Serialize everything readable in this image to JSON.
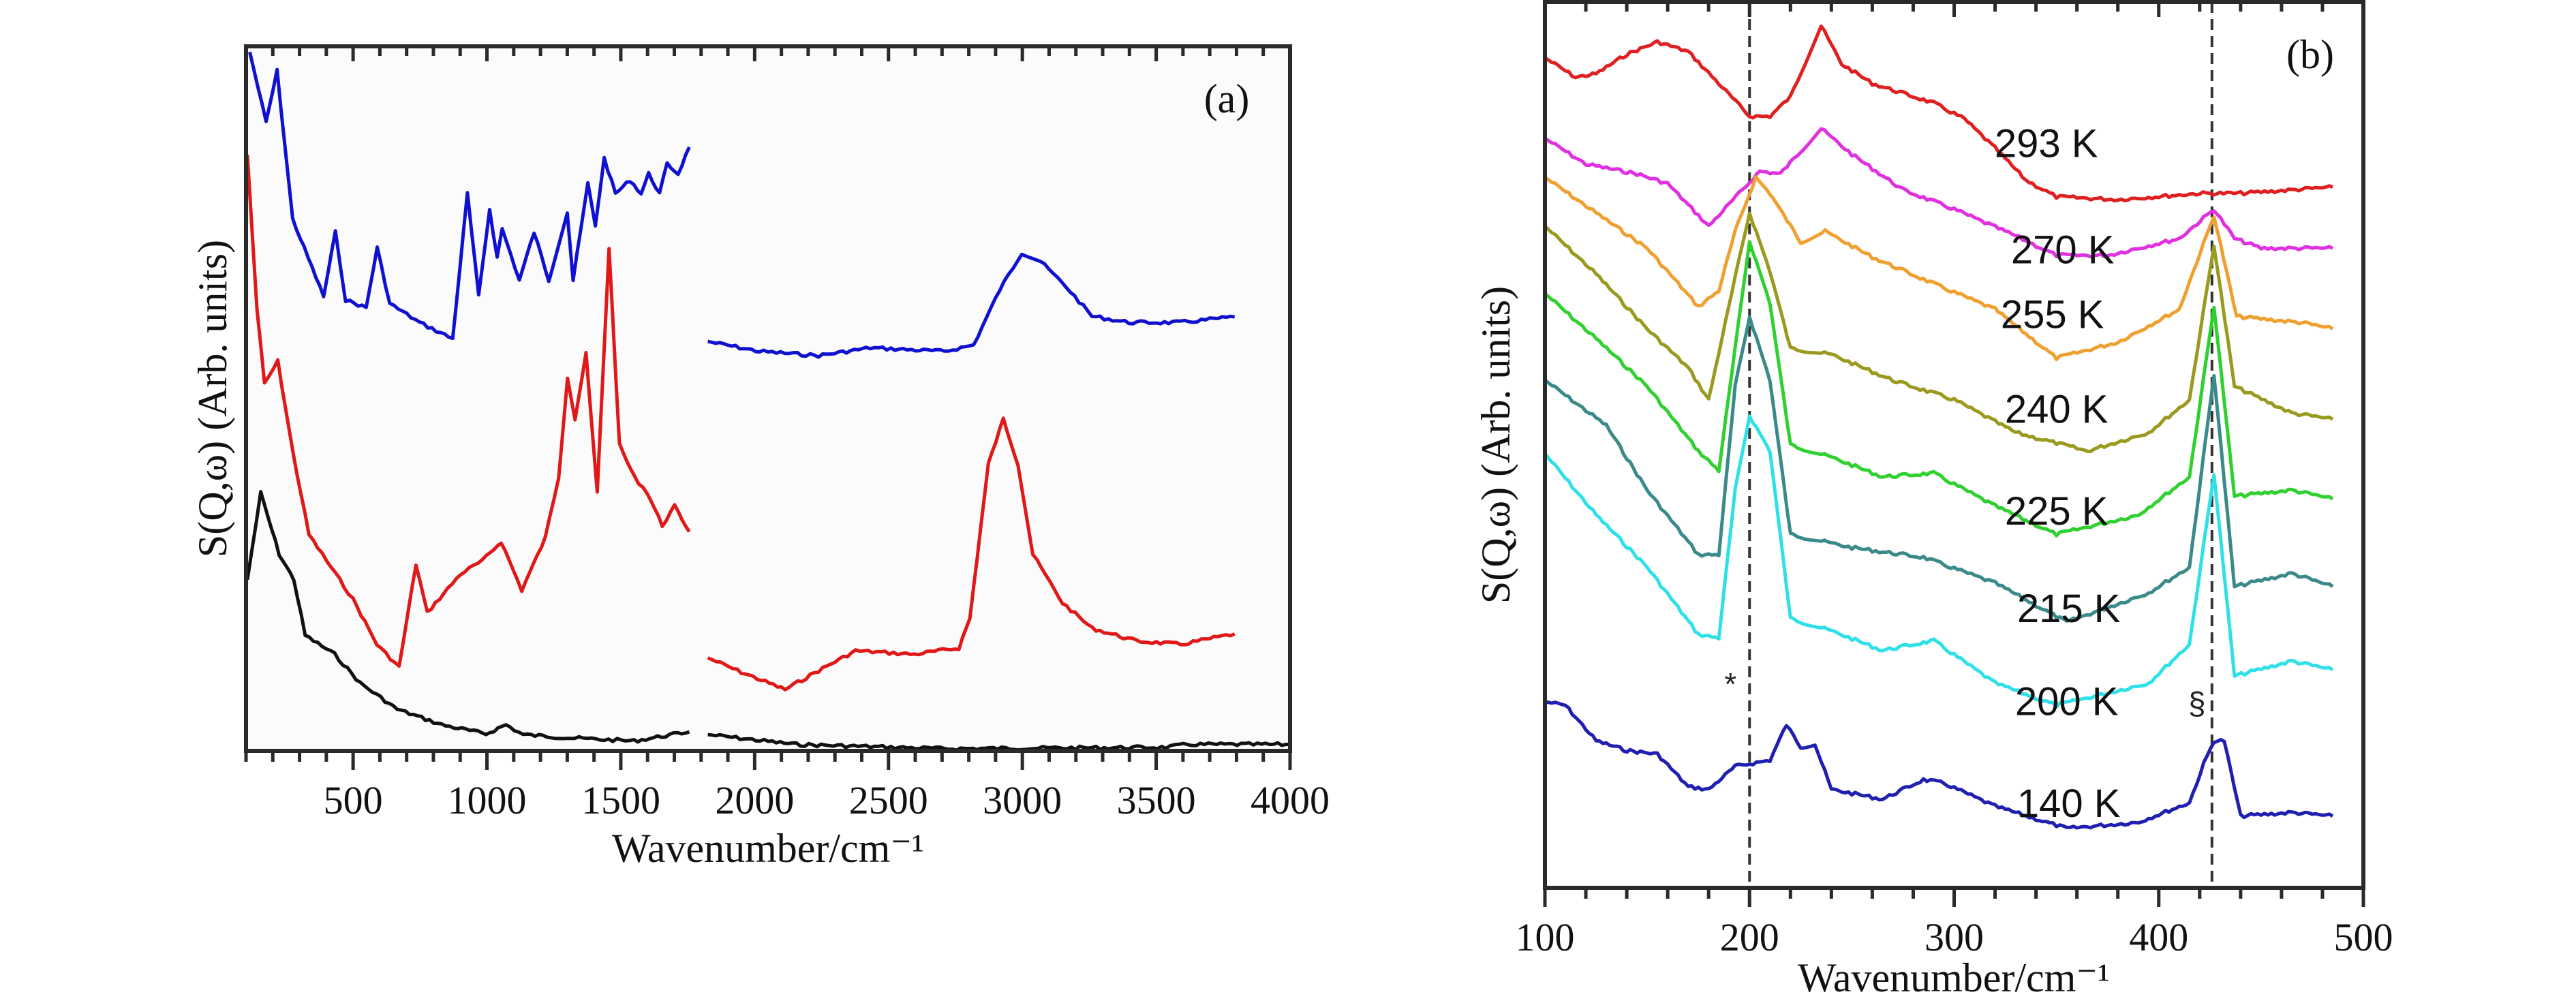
{
  "chart_data": [
    {
      "panel": "a",
      "type": "line",
      "panel_tag": "(a)",
      "title": "",
      "xlabel": "Wavenumber/cm⁻¹",
      "ylabel": "S(Q,ω) (Arb. units)",
      "xlim": [
        100,
        4000
      ],
      "ylim": [
        0,
        100
      ],
      "xticks": [
        500,
        1000,
        1500,
        2000,
        2500,
        3000,
        3500,
        4000
      ],
      "xticklabels": [
        "500",
        "1000",
        "1500",
        "2000",
        "2500",
        "3000",
        "3500",
        "4000"
      ],
      "x_minor_step": 100,
      "grid": false,
      "series": [
        {
          "name": "blue",
          "color": "#1010d0",
          "segments": [
            {
              "x": [
                114,
                175,
                216,
                274,
                390,
                434,
                472,
                549,
                590,
                637,
                748,
                872,
                927,
                969,
                1010,
                1038,
                1057,
                1121,
                1176,
                1231,
                1300,
                1322,
                1377,
                1405,
                1438,
                1480,
                1535,
                1576,
                1604,
                1645,
                1673,
                1714,
                1756
              ],
              "y": [
                99.2,
                89.2,
                96.5,
                75.5,
                64.5,
                73.6,
                64,
                62.9,
                71.4,
                63.5,
                60.8,
                58.5,
                79.1,
                64.5,
                76.9,
                70,
                74.1,
                66.8,
                73.6,
                66.8,
                76.4,
                66.8,
                80.5,
                74.6,
                84.1,
                79.1,
                81,
                79.1,
                81.9,
                79.1,
                83.3,
                81.9,
                85.7
              ]
            },
            {
              "x": [
                1825,
                2018,
                2239,
                2432,
                2708,
                2818,
                2915,
                2998,
                3067,
                3163,
                3260,
                3398,
                3591,
                3793
              ],
              "y": [
                58.1,
                56.7,
                56.1,
                57.2,
                56.7,
                57.6,
                65.4,
                70.7,
                69.5,
                65.9,
                61.7,
                60.8,
                60.8,
                61.6
              ]
            }
          ]
        },
        {
          "name": "red",
          "color": "#e01818",
          "segments": [
            {
              "x": [
                105,
                141,
                169,
                219,
                274,
                335,
                417,
                500,
                589,
                672,
                735,
                777,
                901,
                984,
                1053,
                1130,
                1218,
                1268,
                1301,
                1329,
                1370,
                1412,
                1456,
                1495,
                1550,
                1600,
                1655,
                1701,
                1756
              ],
              "y": [
                84.6,
                62.7,
                52.1,
                55.3,
                42.6,
                30.7,
                26.1,
                21.5,
                15.1,
                11.9,
                26.5,
                19.6,
                25.1,
                27,
                29.7,
                22.8,
                30.2,
                38.9,
                53.1,
                47.1,
                56.3,
                36.6,
                71.4,
                43.4,
                38.9,
                36.6,
                32,
                34.7,
                31.1
              ]
            },
            {
              "x": [
                1825,
                1935,
                2114,
                2239,
                2377,
                2597,
                2763,
                2804,
                2873,
                2929,
                2984,
                3039,
                3150,
                3260,
                3425,
                3591,
                3793
              ],
              "y": [
                13.2,
                11.4,
                8.7,
                11.4,
                14.2,
                13.7,
                14.6,
                18.8,
                40.7,
                47.1,
                40.7,
                27.9,
                21,
                17.4,
                15.6,
                15.1,
                16.6
              ]
            }
          ]
        },
        {
          "name": "black",
          "color": "#111111",
          "segments": [
            {
              "x": [
                105,
                155,
                224,
                279,
                321,
                431,
                527,
                665,
                831,
                996,
                1071,
                1135,
                1328,
                1549,
                1756
              ],
              "y": [
                24.3,
                36.6,
                27.9,
                24.3,
                16.4,
                13.7,
                9.6,
                5.9,
                3.7,
                2.4,
                3.7,
                2.3,
                1.8,
                1.4,
                2.7
              ]
            },
            {
              "x": [
                1825,
                2156,
                2708,
                3536,
                3619,
                4000
              ],
              "y": [
                2.3,
                0.9,
                0.3,
                0.5,
                0.9,
                0.9
              ]
            }
          ]
        }
      ]
    },
    {
      "panel": "b",
      "type": "line",
      "panel_tag": "(b)",
      "title": "",
      "xlabel": "Wavenumber/cm⁻¹",
      "ylabel": "S(Q,ω) (Arb. units)",
      "xlim": [
        100,
        500
      ],
      "ylim": [
        0,
        100
      ],
      "xticks": [
        100,
        200,
        300,
        400,
        500
      ],
      "xticklabels": [
        "100",
        "200",
        "300",
        "400",
        "500"
      ],
      "x_minor_step": 20,
      "grid": false,
      "reference_lines": [
        {
          "x": 200,
          "marker": "*"
        },
        {
          "x": 426,
          "marker": "§"
        }
      ],
      "series": [
        {
          "name": "293 K",
          "color": "#e02020",
          "x": [
            100,
            115,
            125,
            140,
            155,
            170,
            185,
            200,
            210,
            220,
            235,
            245,
            260,
            290,
            305,
            320,
            335,
            350,
            380,
            420,
            440,
            485
          ],
          "y": [
            93.7,
            91.5,
            91.9,
            94.1,
            95.5,
            94.4,
            90.8,
            87.1,
            87.1,
            89.3,
            97.3,
            93,
            90.8,
            88.6,
            86.8,
            83.5,
            79.9,
            78,
            77.7,
            78.4,
            78.4,
            79.1
          ],
          "label_at": [
            345,
            82.5
          ]
        },
        {
          "name": "270 K",
          "color": "#e030e0",
          "x": [
            100,
            120,
            145,
            160,
            180,
            195,
            205,
            215,
            235,
            250,
            275,
            300,
            330,
            350,
            375,
            410,
            427,
            437,
            450,
            485
          ],
          "y": [
            84.6,
            81.7,
            80.6,
            79.5,
            74.7,
            78.4,
            80.9,
            80.6,
            85.7,
            82.8,
            78.8,
            76.6,
            73.6,
            71.4,
            71.4,
            73.3,
            76.6,
            73.3,
            72.2,
            72.2
          ],
          "label_at": [
            353,
            70.5
          ]
        },
        {
          "name": "255 K",
          "color": "#f0a030",
          "x": [
            100,
            125,
            150,
            175,
            185,
            193,
            203,
            210,
            225,
            237,
            260,
            290,
            320,
            350,
            380,
            410,
            427,
            438,
            470,
            485
          ],
          "y": [
            80.2,
            76.2,
            72.2,
            65.6,
            67.4,
            74.1,
            80.2,
            78.4,
            72.9,
            74.1,
            71.2,
            68.2,
            65.3,
            59.8,
            61.6,
            65.3,
            75.9,
            64.5,
            63.8,
            63.1
          ],
          "label_at": [
            348,
            63.2
          ]
        },
        {
          "name": "240 K",
          "color": "#9a9a20",
          "x": [
            100,
            125,
            150,
            170,
            180,
            193,
            200,
            210,
            220,
            240,
            270,
            300,
            330,
            365,
            395,
            415,
            427,
            437,
            465,
            485
          ],
          "y": [
            74.7,
            69.3,
            63.1,
            58.7,
            55.1,
            68.9,
            76.2,
            69.6,
            60.9,
            60.2,
            57.3,
            55.1,
            51.4,
            49.3,
            51.4,
            55.1,
            72.6,
            56.6,
            53.6,
            52.9
          ],
          "label_at": [
            350,
            52.5
          ]
        },
        {
          "name": "225 K",
          "color": "#30d030",
          "x": [
            100,
            125,
            150,
            175,
            185,
            193,
            200,
            210,
            220,
            240,
            265,
            290,
            320,
            350,
            390,
            415,
            427,
            437,
            465,
            485
          ],
          "y": [
            67.1,
            62,
            56.6,
            49.3,
            47.1,
            60.9,
            73,
            66,
            50,
            48.6,
            46.4,
            46.8,
            43.1,
            39.9,
            42.1,
            46.4,
            65.7,
            44.2,
            44.9,
            43.9
          ],
          "label_at": [
            350,
            41
          ]
        },
        {
          "name": "215 K",
          "color": "#3a8a8a",
          "x": [
            100,
            130,
            150,
            175,
            185,
            193,
            200,
            210,
            220,
            250,
            285,
            320,
            355,
            395,
            415,
            427,
            437,
            465,
            485
          ],
          "y": [
            57.3,
            52.2,
            44.9,
            37.6,
            37.6,
            56.6,
            64.5,
            57.3,
            39.9,
            38.4,
            37.3,
            34.4,
            30,
            33.3,
            36.2,
            58,
            34,
            35.5,
            34
          ],
          "label_at": [
            356,
            30
          ]
        },
        {
          "name": "200 K",
          "color": "#30e0e8",
          "x": [
            100,
            125,
            150,
            175,
            185,
            193,
            200,
            210,
            220,
            240,
            265,
            290,
            320,
            350,
            395,
            415,
            427,
            437,
            465,
            485
          ],
          "y": [
            49,
            42.1,
            36.2,
            28.6,
            28.2,
            44.9,
            53.3,
            49.3,
            30.4,
            29,
            26.8,
            27.9,
            23.1,
            20.6,
            23.1,
            27.5,
            46.8,
            23.9,
            25.6,
            24.6
          ],
          "label_at": [
            355,
            19.5
          ]
        },
        {
          "name": "140 K",
          "color": "#2020b0",
          "x": [
            100,
            110,
            125,
            140,
            155,
            170,
            180,
            193,
            200,
            210,
            218,
            225,
            232,
            240,
            265,
            285,
            295,
            320,
            355,
            390,
            415,
            422,
            427,
            432,
            440,
            465,
            485
          ],
          "y": [
            21,
            20.6,
            16.6,
            15.5,
            15.1,
            11.4,
            11.1,
            13.7,
            14,
            14.4,
            18.4,
            15.9,
            16.2,
            11.1,
            10,
            12.2,
            11.8,
            9.2,
            6.7,
            7.4,
            9.6,
            14,
            16.6,
            16.6,
            8.1,
            8.5,
            8.1
          ],
          "label_at": [
            356,
            8
          ]
        }
      ]
    }
  ]
}
